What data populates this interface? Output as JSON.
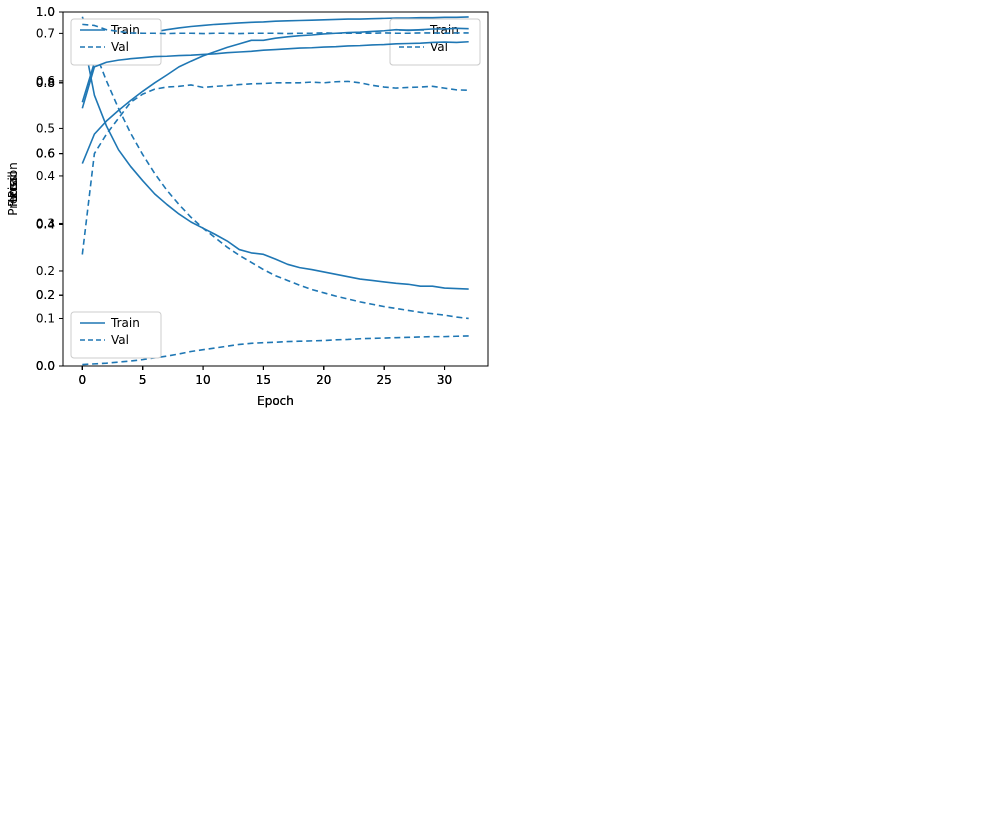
{
  "figure": {
    "background": "#ffffff",
    "line_color": "#1f77b4",
    "spine_color": "#000000",
    "legend_border_color": "#cccccc"
  },
  "chart_data": [
    {
      "id": "loss",
      "type": "line",
      "title": "",
      "xlabel": "Epoch",
      "ylabel": "Loss",
      "x": [
        0,
        1,
        2,
        3,
        4,
        5,
        6,
        7,
        8,
        9,
        10,
        11,
        12,
        13,
        14,
        15,
        16,
        17,
        18,
        19,
        20,
        21,
        22,
        23,
        24,
        25,
        26,
        27,
        28,
        29,
        30,
        31,
        32
      ],
      "series": [
        {
          "name": "Train",
          "style": "solid",
          "values": [
            0.7,
            0.57,
            0.505,
            0.455,
            0.42,
            0.39,
            0.362,
            0.34,
            0.32,
            0.303,
            0.29,
            0.277,
            0.263,
            0.245,
            0.238,
            0.235,
            0.225,
            0.214,
            0.207,
            0.203,
            0.198,
            0.193,
            0.188,
            0.183,
            0.18,
            0.177,
            0.174,
            0.172,
            0.168,
            0.168,
            0.164,
            0.163,
            0.162
          ]
        },
        {
          "name": "Val",
          "style": "dashed",
          "values": [
            0.735,
            0.665,
            0.6,
            0.542,
            0.49,
            0.445,
            0.405,
            0.37,
            0.34,
            0.313,
            0.29,
            0.27,
            0.25,
            0.233,
            0.218,
            0.203,
            0.19,
            0.18,
            0.17,
            0.161,
            0.154,
            0.147,
            0.141,
            0.135,
            0.13,
            0.125,
            0.121,
            0.117,
            0.113,
            0.11,
            0.107,
            0.103,
            0.1
          ]
        }
      ],
      "xlim": [
        -1.6,
        33.6
      ],
      "ylim": [
        0.0,
        0.745
      ],
      "xticks": [
        0,
        5,
        10,
        15,
        20,
        25,
        30
      ],
      "yticks": [
        0.0,
        0.1,
        0.2,
        0.3,
        0.4,
        0.5,
        0.6,
        0.7
      ],
      "legend_position": "upper-right",
      "grid": false
    },
    {
      "id": "prc",
      "type": "line",
      "title": "",
      "xlabel": "Epoch",
      "ylabel": "Prc",
      "x": [
        0,
        1,
        2,
        3,
        4,
        5,
        6,
        7,
        8,
        9,
        10,
        11,
        12,
        13,
        14,
        15,
        16,
        17,
        18,
        19,
        20,
        21,
        22,
        23,
        24,
        25,
        26,
        27,
        28,
        29,
        30,
        31,
        32
      ],
      "series": [
        {
          "name": "Train",
          "style": "solid",
          "values": [
            0.745,
            0.857,
            0.89,
            0.912,
            0.926,
            0.936,
            0.944,
            0.95,
            0.955,
            0.959,
            0.962,
            0.965,
            0.967,
            0.969,
            0.971,
            0.972,
            0.974,
            0.975,
            0.976,
            0.977,
            0.978,
            0.979,
            0.98,
            0.98,
            0.981,
            0.982,
            0.983,
            0.983,
            0.984,
            0.984,
            0.985,
            0.985,
            0.986
          ]
        },
        {
          "name": "Val",
          "style": "dashed",
          "values": [
            0.315,
            0.6,
            0.655,
            0.7,
            0.745,
            0.768,
            0.782,
            0.788,
            0.79,
            0.794,
            0.787,
            0.79,
            0.792,
            0.795,
            0.797,
            0.798,
            0.8,
            0.8,
            0.8,
            0.802,
            0.8,
            0.803,
            0.804,
            0.8,
            0.793,
            0.788,
            0.785,
            0.787,
            0.788,
            0.79,
            0.785,
            0.78,
            0.779
          ]
        }
      ],
      "xlim": [
        -1.6,
        33.6
      ],
      "ylim": [
        0.0,
        1.0
      ],
      "xticks": [
        0,
        5,
        10,
        15,
        20,
        25,
        30
      ],
      "yticks": [
        0.0,
        0.2,
        0.4,
        0.6,
        0.8,
        1.0
      ],
      "legend_position": "upper-right",
      "grid": false
    },
    {
      "id": "precision",
      "type": "line",
      "title": "",
      "xlabel": "Epoch",
      "ylabel": "Precision",
      "x": [
        0,
        1,
        2,
        3,
        4,
        5,
        6,
        7,
        8,
        9,
        10,
        11,
        12,
        13,
        14,
        15,
        16,
        17,
        18,
        19,
        20,
        21,
        22,
        23,
        24,
        25,
        26,
        27,
        28,
        29,
        30,
        31,
        32
      ],
      "series": [
        {
          "name": "Train",
          "style": "solid",
          "values": [
            0.572,
            0.655,
            0.692,
            0.722,
            0.75,
            0.776,
            0.8,
            0.822,
            0.845,
            0.861,
            0.876,
            0.888,
            0.9,
            0.91,
            0.92,
            0.92,
            0.926,
            0.93,
            0.933,
            0.935,
            0.938,
            0.94,
            0.942,
            0.943,
            0.945,
            0.947,
            0.95,
            0.948,
            0.95,
            0.952,
            0.952,
            0.954,
            0.953
          ]
        },
        {
          "name": "Val",
          "style": "dashed",
          "values": [
            0.004,
            0.006,
            0.008,
            0.011,
            0.014,
            0.018,
            0.023,
            0.028,
            0.034,
            0.041,
            0.046,
            0.051,
            0.056,
            0.061,
            0.064,
            0.066,
            0.067,
            0.069,
            0.07,
            0.071,
            0.072,
            0.074,
            0.075,
            0.077,
            0.078,
            0.079,
            0.08,
            0.081,
            0.082,
            0.083,
            0.083,
            0.084,
            0.085
          ]
        }
      ],
      "xlim": [
        -1.6,
        33.6
      ],
      "ylim": [
        0.0,
        1.0
      ],
      "xticks": [
        0,
        5,
        10,
        15,
        20,
        25,
        30
      ],
      "yticks": [
        0.0,
        0.2,
        0.4,
        0.6,
        0.8,
        1.0
      ],
      "legend_position": "upper-left",
      "grid": false
    },
    {
      "id": "recall",
      "type": "line",
      "title": "",
      "xlabel": "Epoch",
      "ylabel": "Recall",
      "x": [
        0,
        1,
        2,
        3,
        4,
        5,
        6,
        7,
        8,
        9,
        10,
        11,
        12,
        13,
        14,
        15,
        16,
        17,
        18,
        19,
        20,
        21,
        22,
        23,
        24,
        25,
        26,
        27,
        28,
        29,
        30,
        31,
        32
      ],
      "series": [
        {
          "name": "Train",
          "style": "solid",
          "values": [
            0.728,
            0.845,
            0.858,
            0.864,
            0.868,
            0.871,
            0.874,
            0.875,
            0.877,
            0.878,
            0.88,
            0.882,
            0.885,
            0.887,
            0.889,
            0.892,
            0.894,
            0.896,
            0.898,
            0.899,
            0.901,
            0.902,
            0.904,
            0.905,
            0.907,
            0.908,
            0.91,
            0.911,
            0.912,
            0.914,
            0.915,
            0.914,
            0.916
          ]
        },
        {
          "name": "Val",
          "style": "dashed",
          "values": [
            0.965,
            0.962,
            0.95,
            0.945,
            0.941,
            0.94,
            0.94,
            0.939,
            0.94,
            0.94,
            0.939,
            0.94,
            0.94,
            0.939,
            0.94,
            0.94,
            0.94,
            0.939,
            0.94,
            0.94,
            0.941,
            0.94,
            0.94,
            0.94,
            0.94,
            0.941,
            0.94,
            0.94,
            0.941,
            0.941,
            0.94,
            0.941,
            0.941
          ]
        }
      ],
      "xlim": [
        -1.6,
        33.6
      ],
      "ylim": [
        0.0,
        1.0
      ],
      "xticks": [
        0,
        5,
        10,
        15,
        20,
        25,
        30
      ],
      "yticks": [
        0.0,
        0.2,
        0.4,
        0.6,
        0.8,
        1.0
      ],
      "legend_position": "lower-left",
      "grid": false
    }
  ]
}
